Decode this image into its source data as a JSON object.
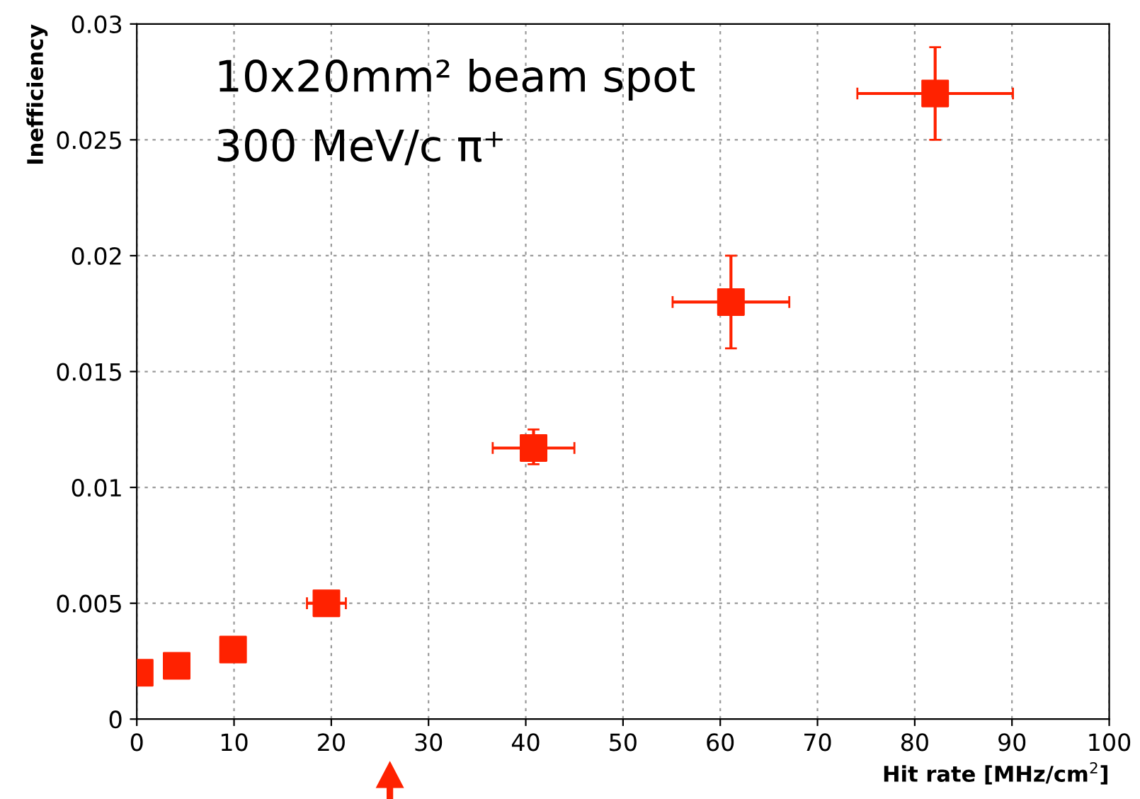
{
  "chart_data": {
    "type": "scatter",
    "xlabel": "Hit rate [MHz/cm$^{2}$]",
    "ylabel": "Inefficiency",
    "x": [
      0.3,
      4.1,
      9.9,
      19.5,
      40.8,
      61.1,
      82.1
    ],
    "series": [
      {
        "color": "#ff2200",
        "values": [
          0.002,
          0.0023,
          0.003,
          0.005,
          0.0117,
          0.018,
          0.027
        ],
        "errors": [
          null,
          null,
          null,
          null,
          [
            0.011,
            0.0125
          ],
          [
            0.016,
            0.02
          ],
          [
            0.025,
            0.029
          ]
        ],
        "xerrors": [
          null,
          null,
          null,
          2,
          4.2,
          6,
          8
        ]
      }
    ],
    "xlim": [
      0,
      100
    ],
    "ylim": [
      0,
      0.03
    ],
    "xticks": [
      0,
      10,
      20,
      30,
      40,
      50,
      60,
      70,
      80,
      90,
      100
    ],
    "yticks": [
      0,
      0.005,
      0.01,
      0.015,
      0.02,
      0.025,
      0.03
    ],
    "grid": true,
    "marker": "square",
    "annotations": [
      "10x20mm² beam spot",
      "300 MeV/c π⁺"
    ]
  }
}
